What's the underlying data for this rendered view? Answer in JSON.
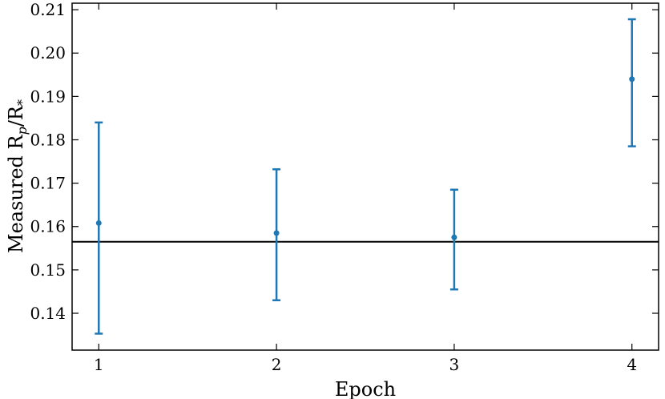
{
  "chart_data": {
    "type": "scatter",
    "title": "",
    "xlabel": "Epoch",
    "ylabel_parts": {
      "main": "Measured R",
      "sub1": "p",
      "slash": "/R",
      "sub2": "*"
    },
    "xlim": [
      0.85,
      4.15
    ],
    "ylim": [
      0.1315,
      0.2115
    ],
    "xticks": [
      1,
      2,
      3,
      4
    ],
    "yticks": [
      0.14,
      0.15,
      0.16,
      0.17,
      0.18,
      0.19,
      0.2,
      0.21
    ],
    "ytick_labels": [
      "0.14",
      "0.15",
      "0.16",
      "0.17",
      "0.18",
      "0.19",
      "0.20",
      "0.21"
    ],
    "series": [
      {
        "x": [
          1,
          2,
          3,
          4
        ],
        "y": [
          0.1608,
          0.1585,
          0.1575,
          0.194
        ],
        "yerr_lower": [
          0.1353,
          0.143,
          0.1455,
          0.1785
        ],
        "yerr_upper": [
          0.184,
          0.1732,
          0.1685,
          0.2078
        ]
      }
    ],
    "reference_line_y": 0.1565,
    "grid": false,
    "colors": {
      "series": "#1f77b4",
      "reference_line": "#000000",
      "axes": "#000000"
    }
  }
}
